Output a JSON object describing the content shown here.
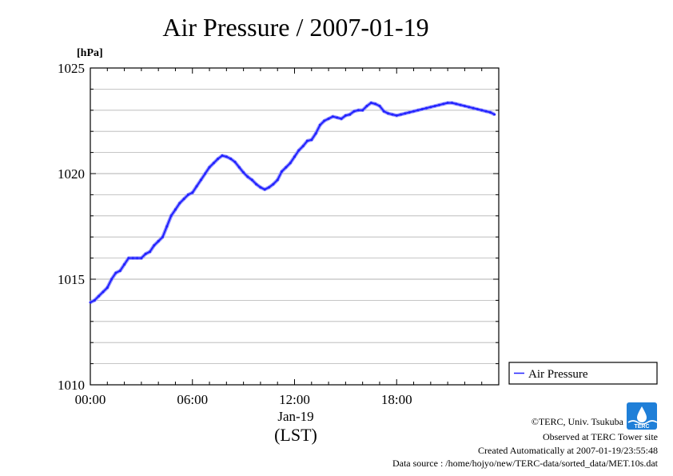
{
  "chart_data": {
    "type": "line",
    "title": "Air Pressure / 2007-01-19",
    "ylabel": "[hPa]",
    "ylim": [
      1010,
      1025
    ],
    "yticks": [
      "1010",
      "1015",
      "1020",
      "1025"
    ],
    "xlim": [
      0,
      24
    ],
    "xticks": [
      "00:00",
      "06:00",
      "12:00",
      "18:00"
    ],
    "xticks_hours": [
      0,
      6,
      12,
      18
    ],
    "date_label": "Jan-19",
    "xlabel": "(LST)",
    "grid": true,
    "legend_position": "right",
    "series": [
      {
        "name": "Air Pressure",
        "color": "#2222ff",
        "x": [
          0.0,
          0.25,
          0.5,
          0.75,
          1.0,
          1.25,
          1.5,
          1.75,
          2.0,
          2.25,
          2.5,
          2.75,
          3.0,
          3.25,
          3.5,
          3.75,
          4.0,
          4.25,
          4.5,
          4.75,
          5.0,
          5.25,
          5.5,
          5.75,
          6.0,
          6.25,
          6.5,
          6.75,
          7.0,
          7.25,
          7.5,
          7.75,
          8.0,
          8.25,
          8.5,
          8.75,
          9.0,
          9.25,
          9.5,
          9.75,
          10.0,
          10.25,
          10.5,
          10.75,
          11.0,
          11.25,
          11.5,
          11.75,
          12.0,
          12.25,
          12.5,
          12.75,
          13.0,
          13.25,
          13.5,
          13.75,
          14.0,
          14.25,
          14.5,
          14.75,
          15.0,
          15.25,
          15.5,
          15.75,
          16.0,
          16.25,
          16.5,
          16.75,
          17.0,
          17.25,
          17.5,
          17.75,
          18.0,
          18.25,
          18.5,
          18.75,
          19.0,
          19.25,
          19.5,
          19.75,
          20.0,
          20.25,
          20.5,
          20.75,
          21.0,
          21.25,
          21.5,
          21.75,
          22.0,
          22.25,
          22.5,
          22.75,
          23.0,
          23.25,
          23.5,
          23.75
        ],
        "values": [
          1013.9,
          1014.0,
          1014.2,
          1014.4,
          1014.6,
          1015.0,
          1015.3,
          1015.4,
          1015.7,
          1016.0,
          1016.0,
          1016.0,
          1016.0,
          1016.2,
          1016.3,
          1016.6,
          1016.8,
          1017.0,
          1017.5,
          1018.0,
          1018.3,
          1018.6,
          1018.8,
          1019.0,
          1019.1,
          1019.4,
          1019.7,
          1020.0,
          1020.3,
          1020.5,
          1020.7,
          1020.85,
          1020.8,
          1020.7,
          1020.55,
          1020.3,
          1020.05,
          1019.85,
          1019.7,
          1019.5,
          1019.35,
          1019.25,
          1019.35,
          1019.5,
          1019.7,
          1020.1,
          1020.3,
          1020.5,
          1020.8,
          1021.1,
          1021.3,
          1021.55,
          1021.6,
          1021.9,
          1022.3,
          1022.5,
          1022.6,
          1022.7,
          1022.65,
          1022.6,
          1022.75,
          1022.8,
          1022.95,
          1023.0,
          1023.0,
          1023.2,
          1023.35,
          1023.3,
          1023.2,
          1022.95,
          1022.85,
          1022.8,
          1022.75,
          1022.8,
          1022.85,
          1022.9,
          1022.95,
          1023.0,
          1023.05,
          1023.1,
          1023.15,
          1023.2,
          1023.25,
          1023.3,
          1023.35,
          1023.35,
          1023.3,
          1023.25,
          1023.2,
          1023.15,
          1023.1,
          1023.05,
          1023.0,
          1022.95,
          1022.9,
          1022.8
        ]
      }
    ]
  },
  "credits": {
    "copyright": "©TERC, Univ. Tsukuba",
    "observed": "Observed at TERC Tower site",
    "created": "Created Automatically at 2007-01-19/23:55:48",
    "source": "Data source : /home/hojyo/new/TERC-data/sorted_data/MET.10s.dat",
    "logo_text": "TERC"
  },
  "colors": {
    "line": "#2222ff",
    "grid": "#b4b4b4",
    "logo": "#1f7fd8"
  }
}
